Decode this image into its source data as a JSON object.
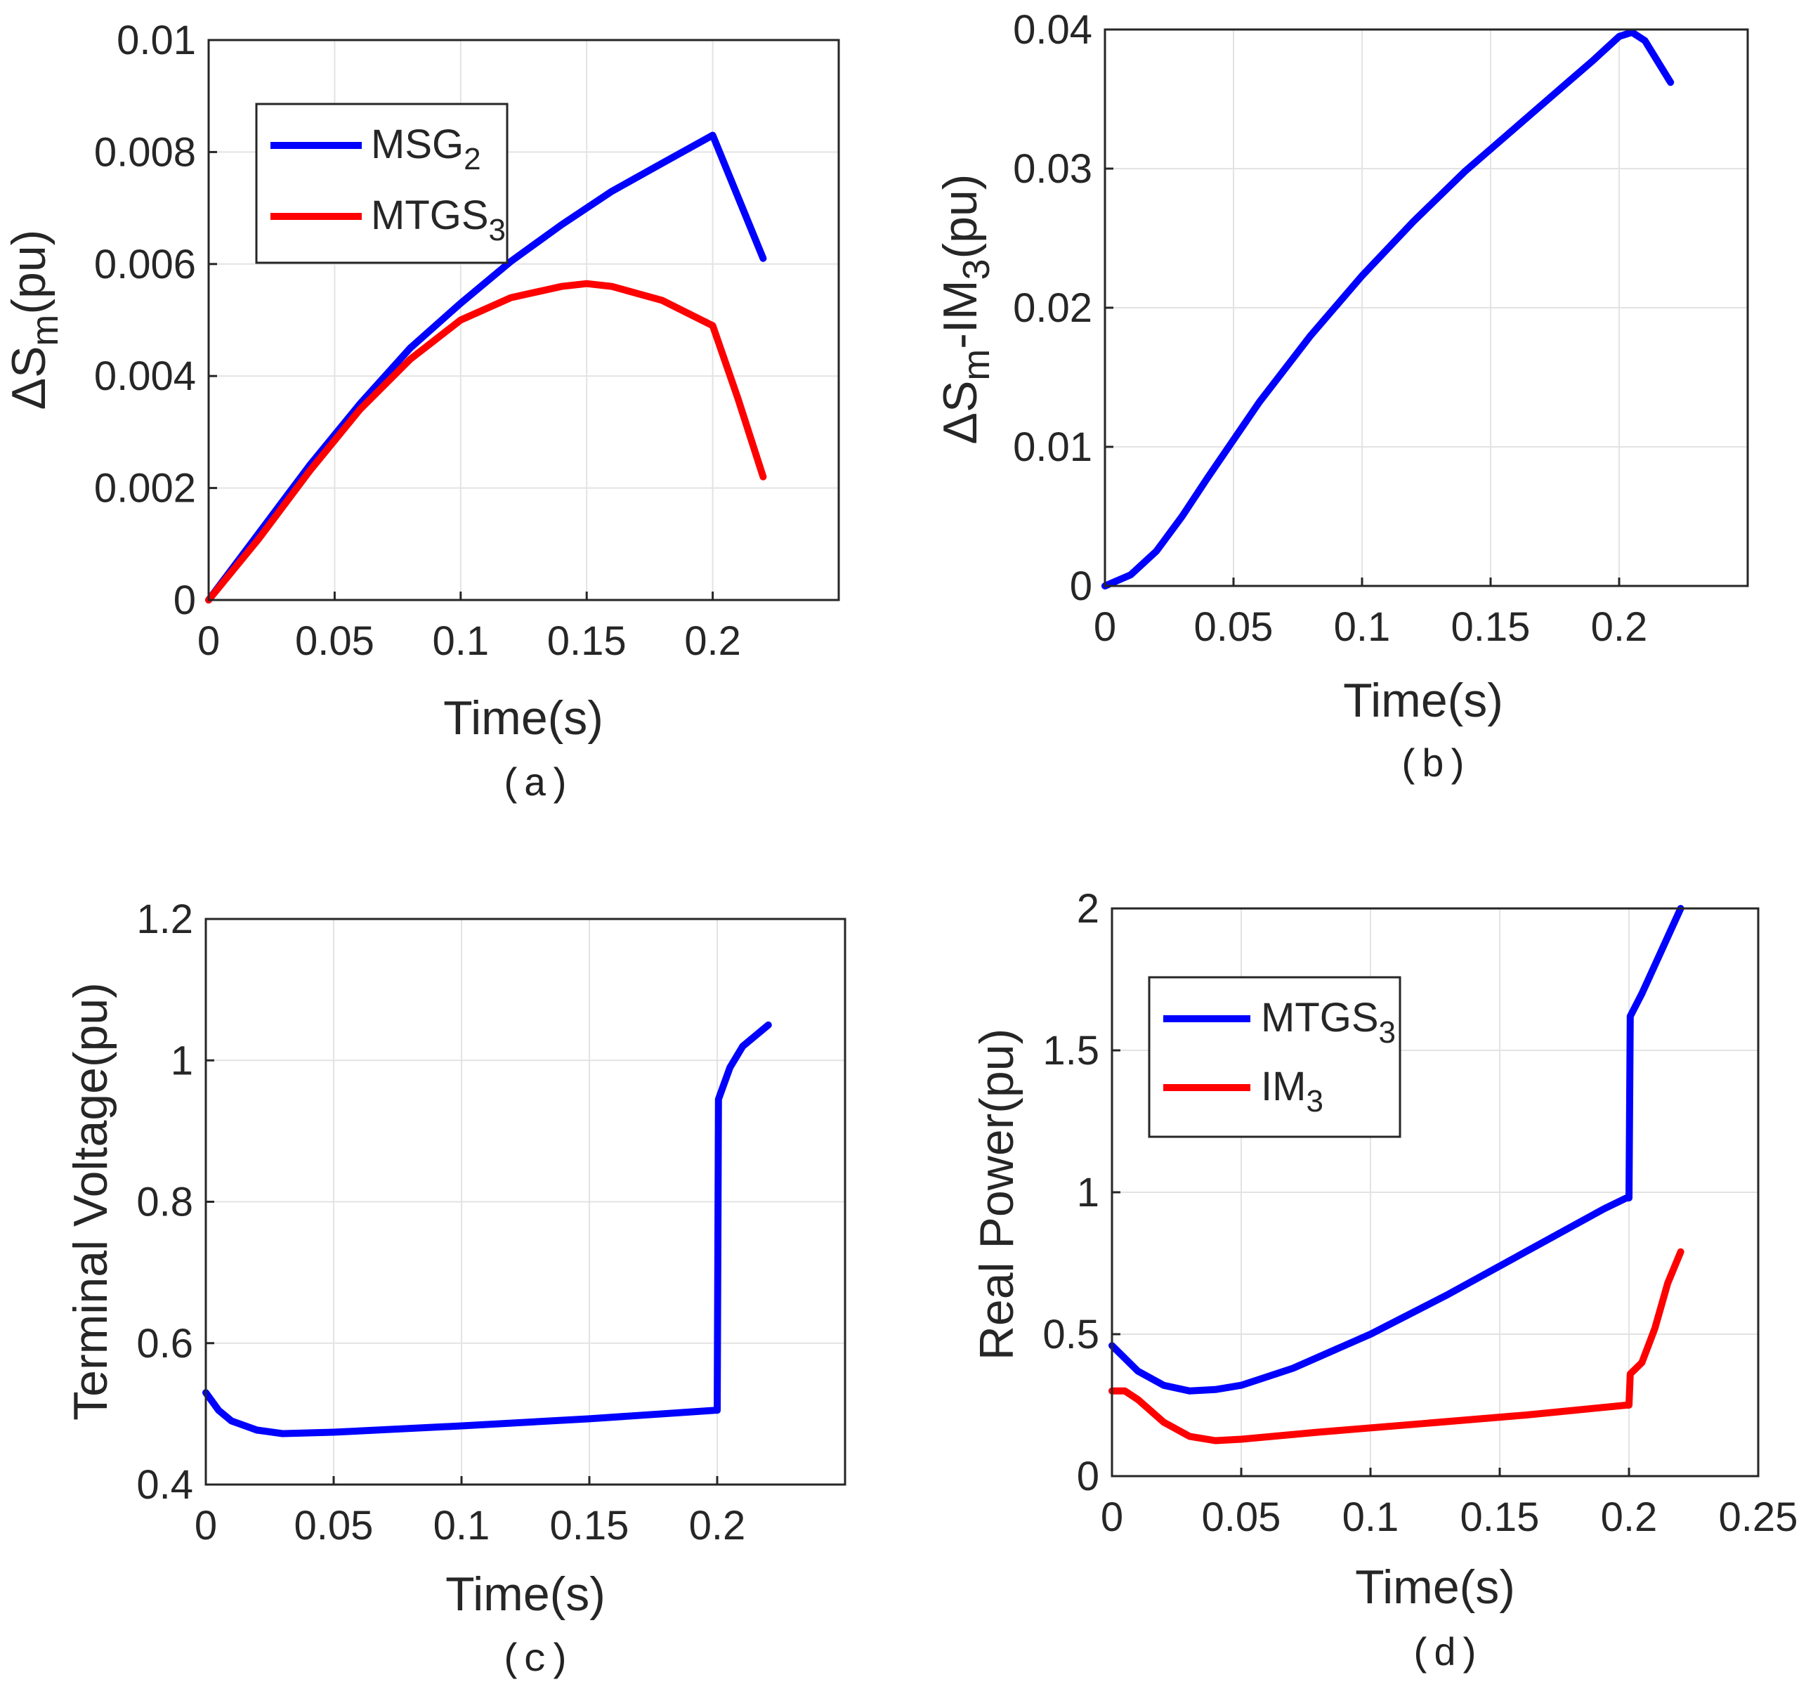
{
  "chart_data": [
    {
      "panel": "a",
      "type": "line",
      "caption": "(a)",
      "ylabel": {
        "main": "ΔS",
        "sub": "m",
        "tail": "(pu)"
      },
      "xlabel": "Time(s)",
      "xlim": [
        0,
        0.25
      ],
      "ylim": [
        0,
        0.01
      ],
      "xticks": [
        0,
        0.05,
        0.1,
        0.15,
        0.2
      ],
      "xticklabels": [
        "0",
        "0.05",
        "0.1",
        "0.15",
        "0.2"
      ],
      "yticks": [
        0,
        0.002,
        0.004,
        0.006,
        0.008,
        0.01
      ],
      "yticklabels": [
        "0",
        "0.002",
        "0.004",
        "0.006",
        "0.008",
        "0.01"
      ],
      "grid": true,
      "legend": {
        "location": "top-left"
      },
      "series": [
        {
          "name": "MSG",
          "sub": "2",
          "color": "#0000ff",
          "x": [
            0,
            0.02,
            0.04,
            0.06,
            0.08,
            0.1,
            0.12,
            0.14,
            0.16,
            0.18,
            0.2,
            0.21,
            0.22
          ],
          "y": [
            0,
            0.0012,
            0.0024,
            0.0035,
            0.0045,
            0.0053,
            0.00605,
            0.0067,
            0.0073,
            0.0078,
            0.0083,
            0.0072,
            0.0061
          ]
        },
        {
          "name": "MTGS",
          "sub": "3",
          "color": "#ff0000",
          "x": [
            0,
            0.02,
            0.04,
            0.06,
            0.08,
            0.1,
            0.12,
            0.14,
            0.15,
            0.16,
            0.18,
            0.2,
            0.21,
            0.22
          ],
          "y": [
            0,
            0.0011,
            0.0023,
            0.0034,
            0.0043,
            0.005,
            0.0054,
            0.0056,
            0.00565,
            0.0056,
            0.00535,
            0.0049,
            0.0036,
            0.0022
          ]
        }
      ]
    },
    {
      "panel": "b",
      "type": "line",
      "caption": "(b)",
      "ylabel": {
        "main": "ΔS",
        "sub": "m",
        "mid": "-IM",
        "sub2": "3",
        "tail": "(pu)"
      },
      "xlabel": "Time(s)",
      "xlim": [
        0,
        0.25
      ],
      "ylim": [
        0,
        0.04
      ],
      "xticks": [
        0,
        0.05,
        0.1,
        0.15,
        0.2
      ],
      "xticklabels": [
        "0",
        "0.05",
        "0.1",
        "0.15",
        "0.2"
      ],
      "yticks": [
        0,
        0.01,
        0.02,
        0.03,
        0.04
      ],
      "yticklabels": [
        "0",
        "0.01",
        "0.02",
        "0.03",
        "0.04"
      ],
      "grid": true,
      "series": [
        {
          "name": "ΔSm-IM3",
          "color": "#0000ff",
          "x": [
            0,
            0.01,
            0.02,
            0.03,
            0.04,
            0.05,
            0.06,
            0.08,
            0.1,
            0.12,
            0.14,
            0.16,
            0.18,
            0.19,
            0.2,
            0.205,
            0.21,
            0.22
          ],
          "y": [
            0,
            0.0008,
            0.0025,
            0.005,
            0.0078,
            0.0105,
            0.0132,
            0.018,
            0.0223,
            0.0262,
            0.0298,
            0.033,
            0.0362,
            0.0378,
            0.0395,
            0.0398,
            0.0392,
            0.0362
          ]
        }
      ]
    },
    {
      "panel": "c",
      "type": "line",
      "caption": "(c)",
      "ylabel": {
        "main": "Terminal Voltage(pu)"
      },
      "xlabel": "Time(s)",
      "xlim": [
        0,
        0.25
      ],
      "ylim": [
        0.4,
        1.2
      ],
      "xticks": [
        0,
        0.05,
        0.1,
        0.15,
        0.2
      ],
      "xticklabels": [
        "0",
        "0.05",
        "0.1",
        "0.15",
        "0.2"
      ],
      "yticks": [
        0.4,
        0.6,
        0.8,
        1.0,
        1.2
      ],
      "yticklabels": [
        "0.4",
        "0.6",
        "0.8",
        "1",
        "1.2"
      ],
      "grid": true,
      "series": [
        {
          "name": "Terminal Voltage",
          "color": "#0000ff",
          "x": [
            0,
            0.005,
            0.01,
            0.02,
            0.03,
            0.05,
            0.1,
            0.15,
            0.199,
            0.2,
            0.2005,
            0.205,
            0.21,
            0.22
          ],
          "y": [
            0.53,
            0.505,
            0.49,
            0.477,
            0.472,
            0.474,
            0.483,
            0.493,
            0.505,
            0.505,
            0.945,
            0.99,
            1.02,
            1.05
          ]
        }
      ]
    },
    {
      "panel": "d",
      "type": "line",
      "caption": "(d)",
      "ylabel": {
        "main": "Real Power(pu)"
      },
      "xlabel": "Time(s)",
      "xlim": [
        0,
        0.25
      ],
      "ylim": [
        0,
        2
      ],
      "xticks": [
        0,
        0.05,
        0.1,
        0.15,
        0.2,
        0.25
      ],
      "xticklabels": [
        "0",
        "0.05",
        "0.1",
        "0.15",
        "0.2",
        "0.25"
      ],
      "yticks": [
        0,
        0.5,
        1,
        1.5,
        2
      ],
      "yticklabels": [
        "0",
        "0.5",
        "1",
        "1.5",
        "2"
      ],
      "grid": true,
      "legend": {
        "location": "top-left"
      },
      "series": [
        {
          "name": "MTGS",
          "sub": "3",
          "color": "#0000ff",
          "x": [
            0,
            0.01,
            0.02,
            0.03,
            0.04,
            0.05,
            0.07,
            0.1,
            0.13,
            0.16,
            0.19,
            0.199,
            0.2,
            0.2005,
            0.205,
            0.21,
            0.22
          ],
          "y": [
            0.46,
            0.37,
            0.32,
            0.3,
            0.305,
            0.32,
            0.38,
            0.5,
            0.64,
            0.79,
            0.94,
            0.98,
            0.98,
            1.62,
            1.7,
            1.8,
            2.0
          ]
        },
        {
          "name": "IM",
          "sub": "3",
          "color": "#ff0000",
          "x": [
            0,
            0.005,
            0.01,
            0.02,
            0.03,
            0.04,
            0.05,
            0.08,
            0.12,
            0.16,
            0.199,
            0.2,
            0.2005,
            0.205,
            0.21,
            0.215,
            0.22
          ],
          "y": [
            0.3,
            0.3,
            0.27,
            0.19,
            0.14,
            0.125,
            0.13,
            0.155,
            0.185,
            0.215,
            0.25,
            0.25,
            0.36,
            0.4,
            0.52,
            0.68,
            0.79
          ]
        }
      ]
    }
  ]
}
